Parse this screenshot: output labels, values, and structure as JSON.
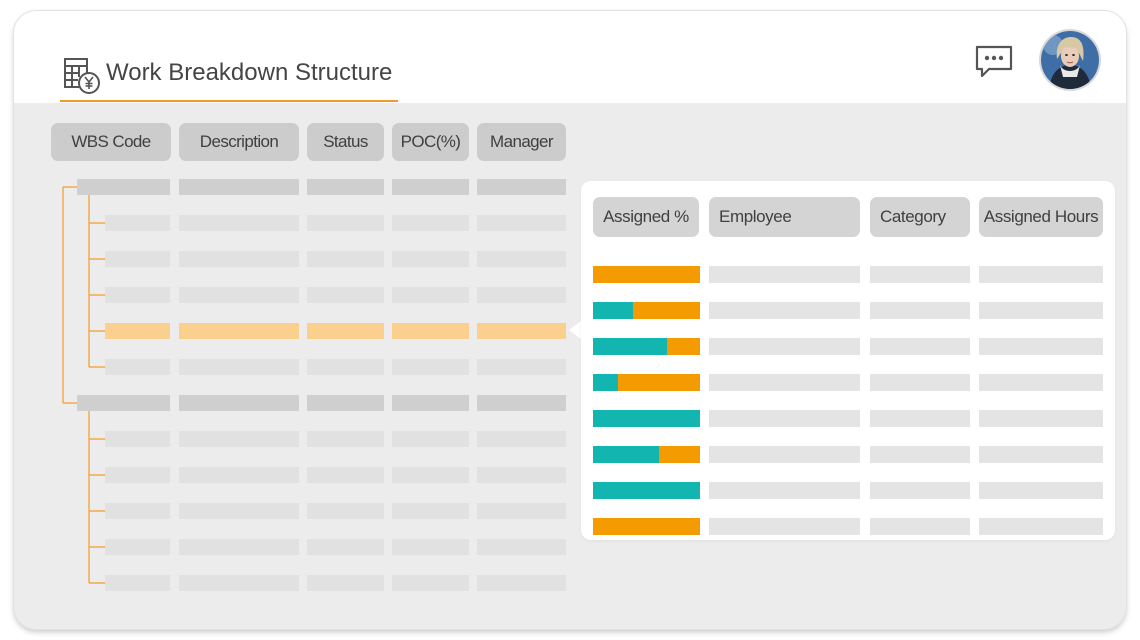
{
  "header": {
    "title": "Work Breakdown Structure",
    "icon": "spreadsheet-currency-icon",
    "chat_icon": "chat-bubble-icon",
    "avatar": "user-avatar"
  },
  "colors": {
    "accent": "#f39b2a",
    "assigned_fill": "#13b5b1",
    "unassigned_fill": "#f39b00",
    "selected_row": "#fbd08e"
  },
  "wbs_table": {
    "columns": [
      "WBS Code",
      "Description",
      "Status",
      "POC(%)",
      "Manager"
    ],
    "rows": [
      {
        "level": 1,
        "selected": false
      },
      {
        "level": 2,
        "selected": false
      },
      {
        "level": 2,
        "selected": false
      },
      {
        "level": 2,
        "selected": false
      },
      {
        "level": 2,
        "selected": true
      },
      {
        "level": 2,
        "selected": false
      },
      {
        "level": 1,
        "selected": false
      },
      {
        "level": 2,
        "selected": false
      },
      {
        "level": 2,
        "selected": false
      },
      {
        "level": 2,
        "selected": false
      },
      {
        "level": 2,
        "selected": false
      },
      {
        "level": 2,
        "selected": false
      }
    ]
  },
  "assignment_panel": {
    "columns": [
      "Assigned %",
      "Employee",
      "Category",
      "Assigned Hours"
    ],
    "assigned_fractions": [
      0.0,
      0.37,
      0.69,
      0.23,
      1.0,
      0.62,
      1.0,
      0.0
    ]
  }
}
